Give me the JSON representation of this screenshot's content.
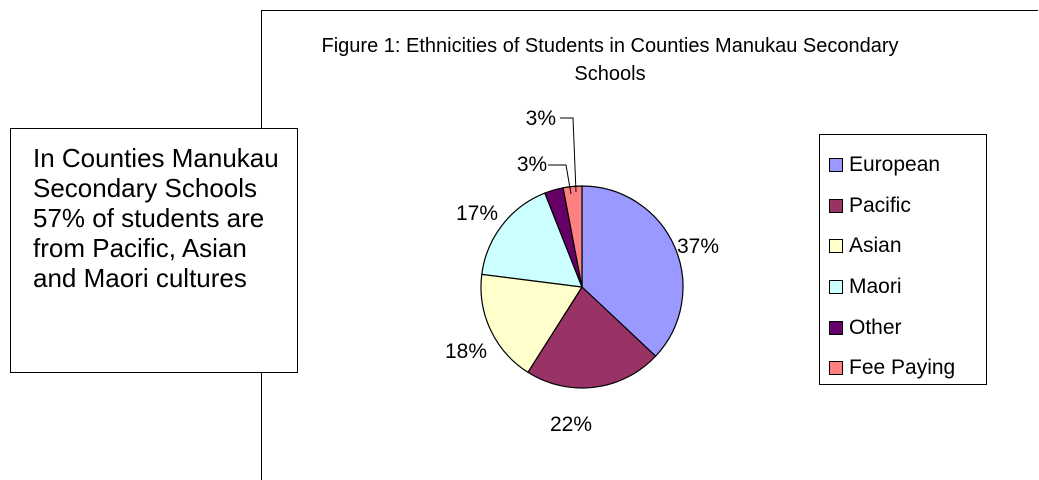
{
  "callout": {
    "text": "In Counties Manukau Secondary Schools 57% of students are from Pacific, Asian and Maori cultures"
  },
  "chart_data": {
    "type": "pie",
    "title": "Figure 1: Ethnicities of Students in Counties Manukau Secondary Schools",
    "legend_position": "right",
    "categories": [
      "European",
      "Pacific",
      "Asian",
      "Maori",
      "Other",
      "Fee Paying"
    ],
    "values": [
      37,
      22,
      18,
      17,
      3,
      3
    ],
    "labels": [
      "37%",
      "22%",
      "18%",
      "17%",
      "3%",
      "3%"
    ],
    "colors": [
      "#9999ff",
      "#993366",
      "#ffffcc",
      "#ccffff",
      "#660066",
      "#ff8080"
    ]
  }
}
